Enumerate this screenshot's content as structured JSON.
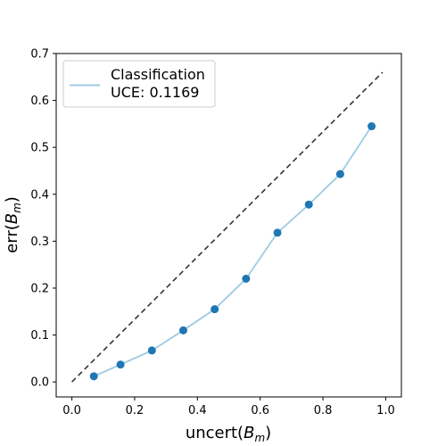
{
  "chart_data": {
    "type": "line",
    "x": [
      0.07,
      0.155,
      0.255,
      0.355,
      0.455,
      0.555,
      0.655,
      0.755,
      0.855,
      0.955
    ],
    "series": [
      {
        "name": "Classification",
        "values": [
          0.012,
          0.037,
          0.067,
          0.11,
          0.155,
          0.22,
          0.318,
          0.378,
          0.443,
          0.545
        ],
        "color": "#1f77b4",
        "line_color": "#9ecae1"
      }
    ],
    "reference_line": {
      "x": [
        0.0,
        0.99
      ],
      "y": [
        0.0,
        0.66
      ],
      "color": "#333333",
      "style": "dashed"
    },
    "legend": {
      "title": "Classification",
      "subtitle": "UCE: 0.1169",
      "placement": "top-left"
    },
    "xlabel": {
      "main": "uncert(",
      "var": "B",
      "sub": "m",
      "close": ")"
    },
    "ylabel": {
      "main": "err(",
      "var": "B",
      "sub": "m",
      "close": ")"
    },
    "xlim": [
      -0.05,
      1.05
    ],
    "ylim": [
      -0.032,
      0.7
    ],
    "xticks": [
      0.0,
      0.2,
      0.4,
      0.6,
      0.8,
      1.0
    ],
    "xtick_labels": [
      "0.0",
      "0.2",
      "0.4",
      "0.6",
      "0.8",
      "1.0"
    ],
    "yticks": [
      0.0,
      0.1,
      0.2,
      0.3,
      0.4,
      0.5,
      0.6,
      0.7
    ],
    "ytick_labels": [
      "0.0",
      "0.1",
      "0.2",
      "0.3",
      "0.4",
      "0.5",
      "0.6",
      "0.7"
    ],
    "grid": false
  }
}
